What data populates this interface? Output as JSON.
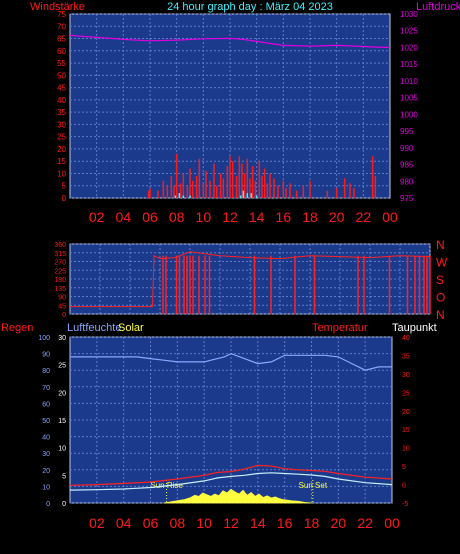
{
  "header": {
    "left": "Windstärke",
    "center": "24 hour graph day : März 04 2023",
    "right": "Luftdruck"
  },
  "panel3": {
    "label_regen": "Regen",
    "label_luftfeuchte": "Luftfeuchte",
    "label_solar": "Solar",
    "label_temperatur": "Temperatur",
    "label_taupunkt": "Taupunkt",
    "sun_rise": "Sun Rise",
    "sun_set": "Sun Set"
  },
  "colors": {
    "panel_bg": "#1c3a8c",
    "grid": "#5f7ac8",
    "wind": "#ff1a1a",
    "gust": "#40f0ff",
    "pressure": "#e000e0",
    "direction": "#ff2020",
    "humidity": "#8aa6ff",
    "temperature": "#ff2020",
    "dewpoint": "#c8f0ff",
    "solar": "#ffff40",
    "axis_red": "#ff1a1a",
    "axis_magenta": "#e000e0",
    "axis_white": "#ffffff"
  },
  "chart_data": [
    {
      "type": "line",
      "name": "wind_pressure",
      "x_unit": "hour",
      "xlim": [
        0,
        24
      ],
      "x_ticks": [
        "02",
        "04",
        "06",
        "08",
        "10",
        "12",
        "14",
        "16",
        "18",
        "20",
        "22",
        "00"
      ],
      "left_axis": {
        "ylim": [
          0,
          75
        ],
        "ticks": [
          0,
          5,
          10,
          15,
          20,
          25,
          30,
          35,
          40,
          45,
          50,
          55,
          60,
          65,
          70,
          75
        ]
      },
      "right_axis": {
        "ylim": [
          975,
          1030
        ],
        "ticks": [
          975,
          980,
          985,
          990,
          995,
          1000,
          1005,
          1010,
          1015,
          1020,
          1025,
          1030
        ]
      },
      "pressure": {
        "x": [
          0,
          2,
          4,
          6,
          8,
          10,
          12,
          13,
          14,
          15,
          16,
          18,
          20,
          22,
          23,
          24
        ],
        "y": [
          1023.6,
          1023.0,
          1022.4,
          1022.0,
          1022.2,
          1022.6,
          1022.7,
          1022.4,
          1021.8,
          1021.2,
          1020.6,
          1020.4,
          1020.6,
          1020.3,
          1020.1,
          1020.0
        ]
      },
      "wind": {
        "x": [
          5.9,
          6.0,
          6.6,
          7.0,
          7.3,
          7.6,
          7.8,
          8.0,
          8.3,
          8.5,
          8.8,
          9.0,
          9.2,
          9.5,
          9.7,
          10.0,
          10.2,
          10.5,
          10.8,
          11.0,
          11.3,
          11.5,
          11.8,
          12.0,
          12.2,
          12.5,
          12.7,
          12.9,
          13.1,
          13.3,
          13.5,
          13.7,
          13.9,
          14.2,
          14.4,
          14.6,
          14.8,
          15.0,
          15.3,
          15.6,
          16.0,
          16.2,
          16.5,
          17.0,
          17.5,
          18.0,
          19.3,
          20.0,
          20.6,
          21.0,
          21.3,
          22.7,
          22.9
        ],
        "y": [
          3,
          4,
          3,
          7,
          5,
          9,
          5,
          18,
          6,
          10,
          5,
          12,
          7,
          9,
          16,
          6,
          11,
          7,
          14,
          5,
          10,
          8,
          13,
          17,
          15,
          9,
          17,
          14,
          10,
          16,
          8,
          13,
          7,
          15,
          9,
          12,
          6,
          10,
          8,
          5,
          7,
          4,
          6,
          3,
          5,
          7,
          3,
          4,
          8,
          6,
          4,
          17,
          9
        ]
      },
      "gust": {
        "x": [
          7.9,
          8.2,
          8.5,
          9.0,
          12.8,
          13.0,
          13.3,
          13.6,
          14.0
        ],
        "y": [
          1,
          2,
          1,
          1,
          1,
          3,
          2,
          2,
          1
        ]
      }
    },
    {
      "type": "scatter",
      "name": "wind_direction",
      "xlim": [
        0,
        24
      ],
      "ylim": [
        0,
        360
      ],
      "left_ticks": [
        0,
        45,
        90,
        135,
        180,
        225,
        270,
        315,
        360
      ],
      "right_labels": [
        "N",
        "W",
        "S",
        "O",
        "N"
      ],
      "segments": [
        {
          "x": [
            0,
            5.5
          ],
          "y": [
            38,
            38
          ]
        },
        {
          "x": [
            5.5,
            5.6,
            6.0,
            7.0,
            8.0,
            10.0,
            12.0,
            14.0,
            16.0,
            18.0,
            20.0,
            22.0,
            24.0
          ],
          "y": [
            38,
            300,
            285,
            290,
            320,
            300,
            290,
            285,
            300,
            295,
            290,
            300,
            295
          ]
        }
      ],
      "spikes_x": [
        6.2,
        6.4,
        7.1,
        7.3,
        7.6,
        7.8,
        8.0,
        8.2,
        8.6,
        9.0,
        9.3,
        12.3,
        13.4,
        15.0,
        16.3,
        19.2,
        19.6,
        21.3,
        22.5,
        23.0,
        23.3,
        23.6,
        23.8,
        24.0
      ]
    },
    {
      "type": "line",
      "name": "humidity_solar_temp",
      "xlim": [
        0,
        24
      ],
      "humidity_axis": {
        "ylim": [
          0,
          100
        ],
        "ticks": [
          0,
          10,
          20,
          30,
          40,
          50,
          60,
          70,
          80,
          90,
          100
        ]
      },
      "solar_axis": {
        "ylim": [
          0,
          30
        ],
        "ticks": [
          0,
          5,
          10,
          15,
          20,
          25,
          30
        ]
      },
      "temp_axis": {
        "ylim": [
          -5,
          40
        ],
        "ticks": [
          -5,
          0,
          5,
          10,
          15,
          20,
          25,
          30,
          35,
          40
        ]
      },
      "humidity": {
        "x": [
          0,
          2,
          4,
          5,
          6,
          7,
          8,
          9,
          10,
          10.5,
          11,
          11.5,
          12,
          13,
          14,
          15,
          16,
          17,
          18,
          18.5,
          19,
          20,
          21,
          22,
          23,
          24
        ],
        "y": [
          88,
          88,
          88,
          88,
          87,
          86,
          85,
          85,
          85,
          86,
          87,
          88,
          90,
          87,
          84,
          85,
          89,
          89,
          89,
          89,
          89,
          88,
          84,
          80,
          82,
          82
        ]
      },
      "temperature": {
        "x": [
          0,
          2,
          4,
          6,
          8,
          10,
          11,
          12,
          13,
          14,
          15,
          16,
          17,
          18,
          19,
          20,
          22,
          24
        ],
        "y": [
          -0.2,
          0.0,
          0.3,
          0.7,
          1.5,
          2.5,
          3.3,
          3.5,
          4.2,
          5.2,
          5.0,
          4.3,
          4.0,
          3.8,
          3.6,
          3.0,
          2.0,
          1.5
        ]
      },
      "dewpoint": {
        "x": [
          0,
          2,
          4,
          6,
          8,
          10,
          11,
          12,
          13,
          14,
          15,
          16,
          17,
          18,
          19,
          20,
          22,
          24
        ],
        "y": [
          -1.5,
          -1.4,
          -1.2,
          -0.8,
          0.0,
          1.0,
          1.8,
          2.2,
          2.5,
          3.0,
          3.2,
          3.0,
          2.8,
          2.6,
          2.2,
          1.5,
          0.5,
          0.0
        ]
      },
      "solar": {
        "x": [
          7.0,
          7.5,
          8.0,
          8.5,
          9.0,
          9.3,
          9.6,
          9.9,
          10.2,
          10.5,
          10.8,
          11.1,
          11.4,
          11.7,
          12.0,
          12.3,
          12.6,
          12.9,
          13.2,
          13.5,
          13.8,
          14.1,
          14.4,
          14.7,
          15.0,
          15.3,
          15.6,
          15.9,
          16.2,
          16.5,
          17.0,
          17.5,
          18.0
        ],
        "y": [
          0,
          0.2,
          0.4,
          0.6,
          1.0,
          1.4,
          1.2,
          1.8,
          1.5,
          1.2,
          1.6,
          1.3,
          2.2,
          1.8,
          2.5,
          2.0,
          1.6,
          2.3,
          1.4,
          1.9,
          1.2,
          1.6,
          1.0,
          1.3,
          0.9,
          1.1,
          0.8,
          0.6,
          0.5,
          0.4,
          0.3,
          0.1,
          0
        ]
      },
      "sun_rise_hour": 7.2,
      "sun_set_hour": 18.1
    }
  ]
}
